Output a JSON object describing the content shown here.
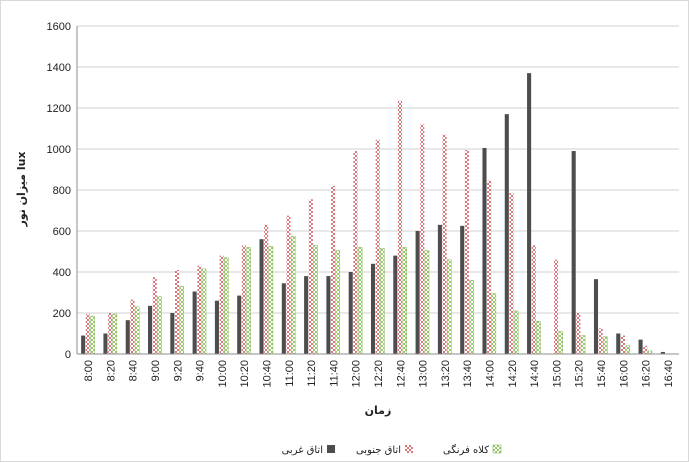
{
  "chart_data": {
    "type": "bar",
    "title": "",
    "xlabel": "زمان",
    "ylabel": "میزان نور lux",
    "ylim": [
      0,
      1600
    ],
    "yticks": [
      0,
      200,
      400,
      600,
      800,
      1000,
      1200,
      1400,
      1600
    ],
    "grid": "horizontal",
    "legend_position": "bottom",
    "categories": [
      "8:00",
      "8:20",
      "8:40",
      "9:00",
      "9:20",
      "9:40",
      "10:00",
      "10:20",
      "10:40",
      "11:00",
      "11:20",
      "11:40",
      "12:00",
      "12:20",
      "12:40",
      "13:00",
      "13:20",
      "13:40",
      "14:00",
      "14:20",
      "14:40",
      "15:00",
      "15:20",
      "15:40",
      "16:00",
      "16:20",
      "16:40"
    ],
    "series": [
      {
        "name": "اتاق غربی",
        "color": "#4d4d4d",
        "style": "solid",
        "values": [
          90,
          100,
          165,
          235,
          200,
          305,
          260,
          285,
          560,
          345,
          380,
          380,
          400,
          440,
          480,
          600,
          630,
          625,
          1005,
          1170,
          1370,
          0,
          990,
          365,
          100,
          70,
          10
        ]
      },
      {
        "name": "اتاق جنوبی",
        "color": "#d9777a",
        "style": "cross-hatch",
        "values": [
          195,
          200,
          265,
          375,
          410,
          430,
          480,
          530,
          630,
          675,
          755,
          820,
          990,
          1045,
          1235,
          1120,
          1070,
          995,
          845,
          785,
          530,
          460,
          200,
          125,
          90,
          40,
          0
        ]
      },
      {
        "name": "کلاه فرنگی",
        "color": "#8cbf5a",
        "style": "checker",
        "values": [
          185,
          195,
          230,
          280,
          330,
          415,
          470,
          520,
          525,
          575,
          530,
          505,
          520,
          515,
          520,
          505,
          460,
          360,
          295,
          210,
          160,
          110,
          90,
          85,
          40,
          15,
          0
        ]
      }
    ]
  }
}
